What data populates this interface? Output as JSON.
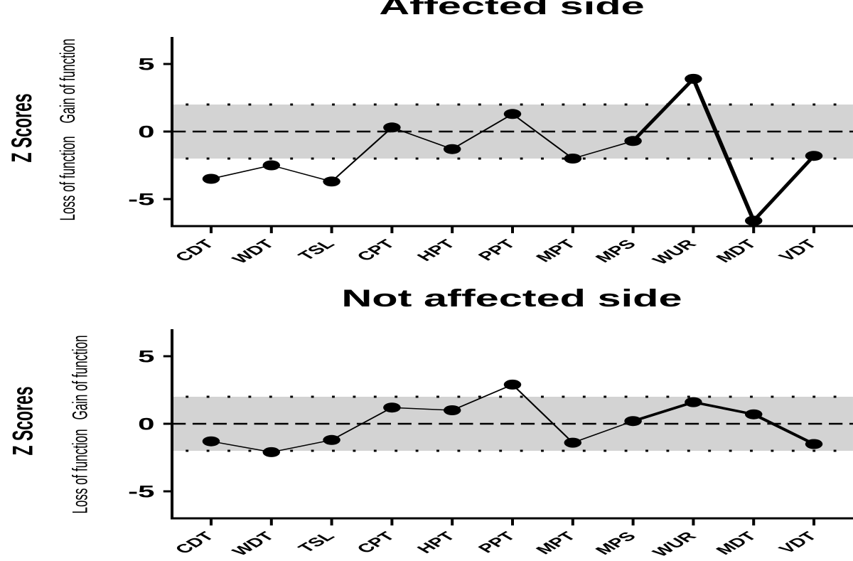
{
  "chart_data": [
    {
      "type": "line",
      "title": "Affected side",
      "ylabel": "Z Scores",
      "ylabel_high": "Gain of function",
      "ylabel_low": "Loss of function",
      "categories": [
        "CDT",
        "WDT",
        "TSL",
        "CPT",
        "HPT",
        "PPT",
        "MPT",
        "MPS",
        "WUR",
        "MDT",
        "VDT"
      ],
      "values": [
        -3.5,
        -2.5,
        -3.7,
        0.3,
        -1.3,
        1.3,
        -2.0,
        -0.7,
        3.9,
        -6.6,
        -1.8
      ],
      "ylim": [
        -7,
        7
      ],
      "yticks": [
        -5,
        0,
        5
      ],
      "shaded_band": [
        -2,
        2
      ],
      "dotted_lines": [
        -2,
        2
      ],
      "dashed_line": 0,
      "grid": false,
      "colors": {
        "line": "#000000",
        "marker": "#000000",
        "band": "#d3d3d3"
      }
    },
    {
      "type": "line",
      "title": "Not affected side",
      "ylabel": "Z Scores",
      "ylabel_high": "Gain of function",
      "ylabel_low": "Loss of function",
      "categories": [
        "CDT",
        "WDT",
        "TSL",
        "CPT",
        "HPT",
        "PPT",
        "MPT",
        "MPS",
        "WUR",
        "MDT",
        "VDT"
      ],
      "values": [
        -1.3,
        -2.1,
        -1.2,
        1.2,
        1.0,
        2.9,
        -1.4,
        0.2,
        1.6,
        0.7,
        -1.5
      ],
      "ylim": [
        -7,
        7
      ],
      "yticks": [
        -5,
        0,
        5
      ],
      "shaded_band": [
        -2,
        2
      ],
      "dotted_lines": [
        -2,
        2
      ],
      "dashed_line": 0,
      "grid": false,
      "colors": {
        "line": "#000000",
        "marker": "#000000",
        "band": "#d3d3d3"
      }
    }
  ]
}
